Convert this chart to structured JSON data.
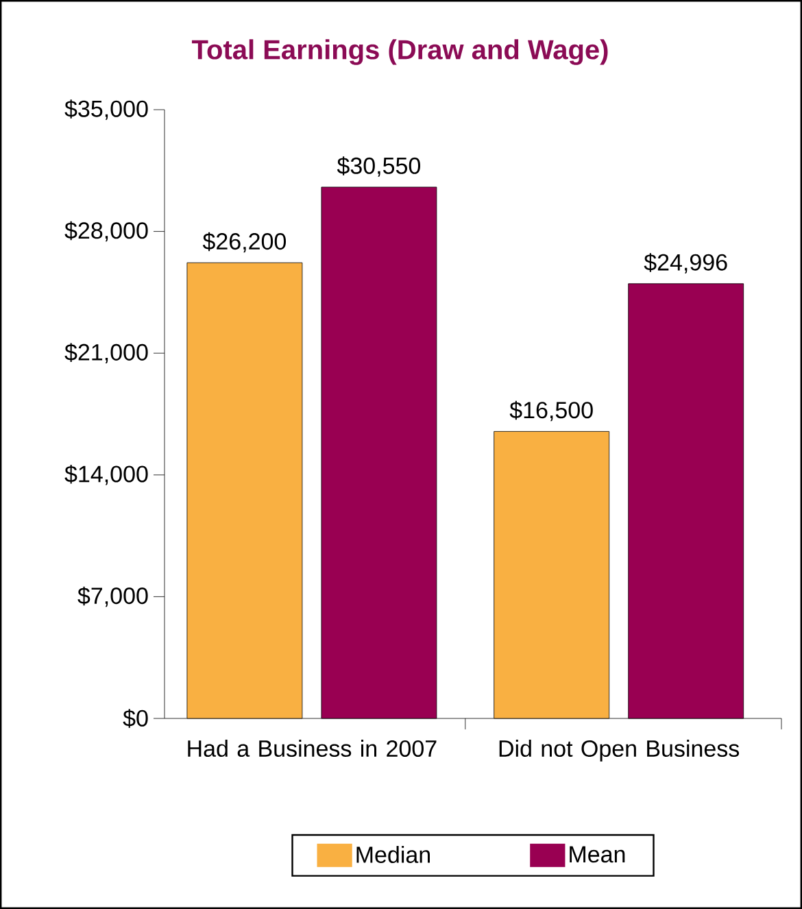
{
  "chart_data": {
    "type": "bar",
    "title": "Total Earnings (Draw and Wage)",
    "categories": [
      "Had a Business in 2007",
      "Did not Open Business"
    ],
    "series": [
      {
        "name": "Median",
        "color": "#f9b042",
        "values": [
          26200,
          16500
        ],
        "value_labels": [
          "$26,200",
          "$16,500"
        ]
      },
      {
        "name": "Mean",
        "color": "#990052",
        "values": [
          30550,
          24996
        ],
        "value_labels": [
          "$30,550",
          "$24,996"
        ]
      }
    ],
    "ylim": [
      0,
      35000
    ],
    "yticks": [
      {
        "value": 0,
        "label": "$0"
      },
      {
        "value": 7000,
        "label": "$7,000"
      },
      {
        "value": 14000,
        "label": "$14,000"
      },
      {
        "value": 21000,
        "label": "$21,000"
      },
      {
        "value": 28000,
        "label": "$28,000"
      },
      {
        "value": 35000,
        "label": "$35,000"
      }
    ],
    "grid": false,
    "legend": "bottom"
  }
}
